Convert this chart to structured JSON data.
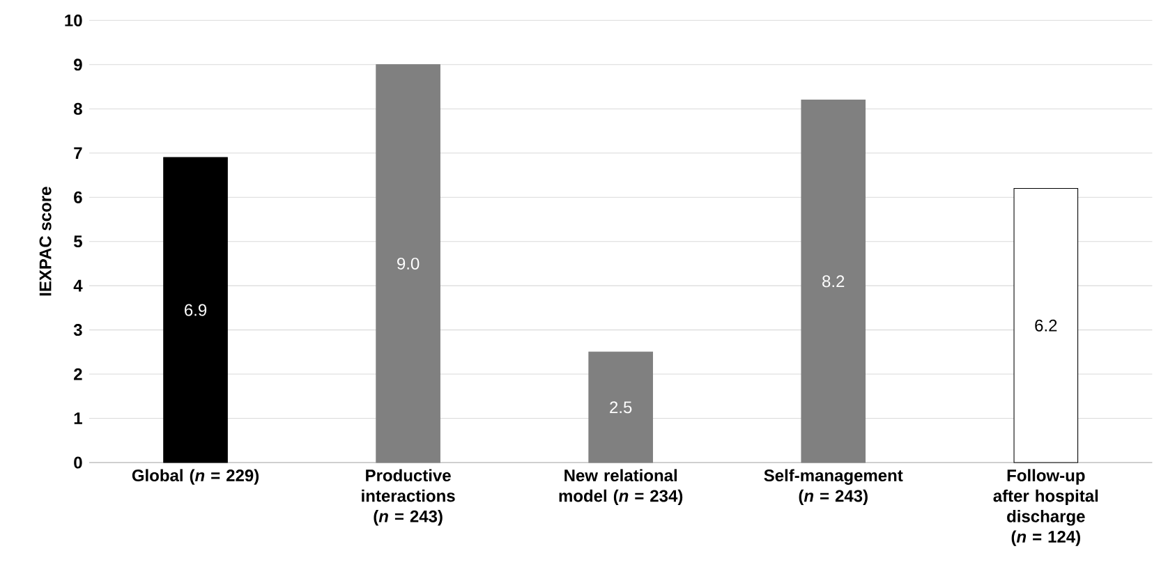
{
  "chart_data": {
    "type": "bar",
    "ylabel": "IEXPAC score",
    "categories": [
      "Global (*n* = 229)",
      "Productive interactions (*n* = 243)",
      "New relational model (*n* = 234)",
      "Self-management (*n* = 243)",
      "Follow-up after hospital discharge (*n* = 124)"
    ],
    "values": [
      6.9,
      9.0,
      2.5,
      8.2,
      6.2
    ],
    "value_labels": [
      "6.9",
      "9.0",
      "2.5",
      "8.2",
      "6.2"
    ],
    "colors": [
      "#000000",
      "#808080",
      "#808080",
      "#808080",
      "#ffffff"
    ],
    "ylim": [
      0,
      10
    ],
    "yticks": [
      0,
      1,
      2,
      3,
      4,
      5,
      6,
      7,
      8,
      9,
      10
    ],
    "grid": "y"
  }
}
